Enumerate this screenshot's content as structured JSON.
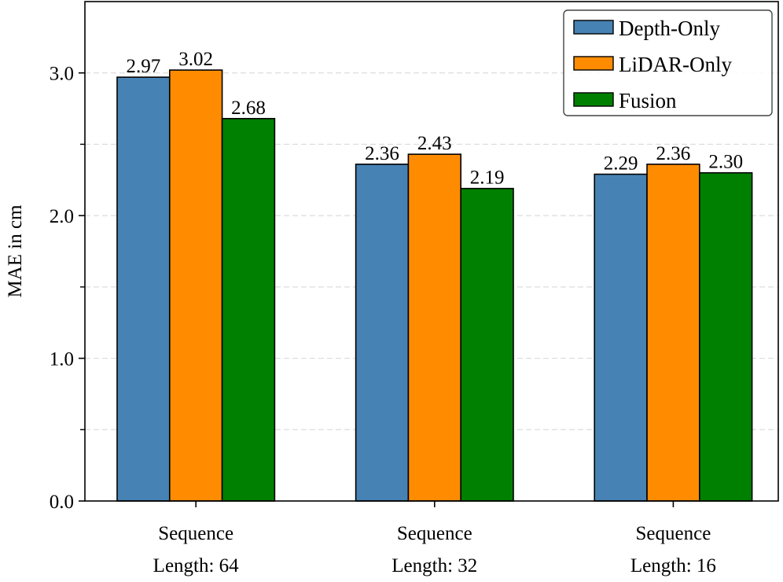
{
  "chart_data": {
    "type": "bar",
    "title": "",
    "xlabel": "",
    "ylabel": "MAE in cm",
    "categories": [
      [
        "Sequence",
        "Length: 64"
      ],
      [
        "Sequence",
        "Length: 32"
      ],
      [
        "Sequence",
        "Length: 16"
      ]
    ],
    "series": [
      {
        "name": "Depth-Only",
        "color": "#4682b4",
        "values": [
          2.97,
          2.36,
          2.29
        ],
        "labels": [
          "2.97",
          "2.36",
          "2.29"
        ]
      },
      {
        "name": "LiDAR-Only",
        "color": "#ff8c00",
        "values": [
          3.02,
          2.43,
          2.36
        ],
        "labels": [
          "3.02",
          "2.43",
          "2.36"
        ]
      },
      {
        "name": "Fusion",
        "color": "#008000",
        "values": [
          2.68,
          2.19,
          2.3
        ],
        "labels": [
          "2.68",
          "2.19",
          "2.30"
        ]
      }
    ],
    "ylim": [
      0,
      3.5
    ],
    "yticks": [
      0.0,
      1.0,
      2.0,
      3.0
    ],
    "ytick_labels": [
      "0.0",
      "1.0",
      "2.0",
      "3.0"
    ],
    "minor_yticks": [
      0.5,
      1.5,
      2.5
    ],
    "grid": "horizontal dashed",
    "legend_position": "top-right"
  }
}
